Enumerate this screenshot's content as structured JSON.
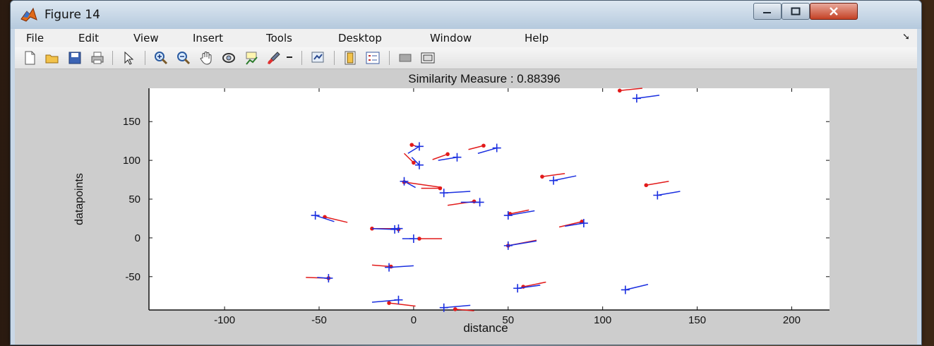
{
  "window": {
    "title": "Figure 14",
    "menu": [
      "File",
      "Edit",
      "View",
      "Insert",
      "Tools",
      "Desktop",
      "Window",
      "Help"
    ]
  },
  "toolbar": {
    "icons": [
      "new-figure-icon",
      "open-file-icon",
      "save-icon",
      "print-icon",
      "edit-plot-arrow-icon",
      "zoom-in-icon",
      "zoom-out-icon",
      "pan-hand-icon",
      "rotate-3d-icon",
      "data-cursor-icon",
      "brush-icon",
      "brush-dropdown-icon",
      "link-plot-icon",
      "insert-colorbar-icon",
      "insert-legend-icon",
      "hide-plot-tools-icon",
      "show-plot-tools-icon"
    ]
  },
  "chart_data": {
    "type": "scatter",
    "title": "Similarity Measure : 0.88396",
    "xlabel": "distance",
    "ylabel": "datapoints",
    "xlim": [
      -140,
      220
    ],
    "ylim": [
      -93,
      193
    ],
    "xticks": [
      -100,
      -50,
      0,
      50,
      100,
      150,
      200
    ],
    "yticks": [
      -50,
      0,
      50,
      100,
      150
    ],
    "colors": {
      "red": "#e21a1a",
      "blue": "#1a2fe0"
    },
    "series": [
      {
        "marker": "dot",
        "color": "red",
        "points": [
          {
            "x": 109,
            "y": 190,
            "dx": 12,
            "dy": 3
          },
          {
            "x": -1,
            "y": 120,
            "dx": 4,
            "dy": -3
          },
          {
            "x": 18,
            "y": 108,
            "dx": -8,
            "dy": -7
          },
          {
            "x": 37,
            "y": 119,
            "dx": -8,
            "dy": -5
          },
          {
            "x": 0,
            "y": 97,
            "dx": -5,
            "dy": 12
          },
          {
            "x": 68,
            "y": 79,
            "dx": 12,
            "dy": 4
          },
          {
            "x": 123,
            "y": 68,
            "dx": 12,
            "dy": 5
          },
          {
            "x": -5,
            "y": 72,
            "dx": 20,
            "dy": -7
          },
          {
            "x": 14,
            "y": 64,
            "dx": -10,
            "dy": 0
          },
          {
            "x": 32,
            "y": 47,
            "dx": -14,
            "dy": -5
          },
          {
            "x": 51,
            "y": 31,
            "dx": 10,
            "dy": 5
          },
          {
            "x": 89,
            "y": 21,
            "dx": -12,
            "dy": -7
          },
          {
            "x": -47,
            "y": 27,
            "dx": 12,
            "dy": -7
          },
          {
            "x": -22,
            "y": 12,
            "dx": 12,
            "dy": 0
          },
          {
            "x": -8,
            "y": 11,
            "dx": -8,
            "dy": 1
          },
          {
            "x": 3,
            "y": -1,
            "dx": 12,
            "dy": 0
          },
          {
            "x": 50,
            "y": -10,
            "dx": 15,
            "dy": 7
          },
          {
            "x": -12,
            "y": -37,
            "dx": -10,
            "dy": 2
          },
          {
            "x": -45,
            "y": -52,
            "dx": -12,
            "dy": 1
          },
          {
            "x": 58,
            "y": -63,
            "dx": 12,
            "dy": 6
          },
          {
            "x": -13,
            "y": -84,
            "dx": 14,
            "dy": -4
          },
          {
            "x": 22,
            "y": -92,
            "dx": 10,
            "dy": -2
          }
        ]
      },
      {
        "marker": "plus",
        "color": "blue",
        "points": [
          {
            "x": 118,
            "y": 180,
            "dx": 12,
            "dy": 4
          },
          {
            "x": 3,
            "y": 118,
            "dx": -6,
            "dy": -9
          },
          {
            "x": 23,
            "y": 104,
            "dx": -10,
            "dy": -4
          },
          {
            "x": 44,
            "y": 116,
            "dx": -10,
            "dy": -7
          },
          {
            "x": 3,
            "y": 94,
            "dx": -4,
            "dy": 10
          },
          {
            "x": 74,
            "y": 74,
            "dx": 12,
            "dy": 6
          },
          {
            "x": 129,
            "y": 55,
            "dx": 12,
            "dy": 5
          },
          {
            "x": -5,
            "y": 73,
            "dx": 6,
            "dy": -8
          },
          {
            "x": 16,
            "y": 58,
            "dx": 14,
            "dy": 2
          },
          {
            "x": 35,
            "y": 46,
            "dx": -10,
            "dy": 0
          },
          {
            "x": 50,
            "y": 29,
            "dx": 14,
            "dy": 6
          },
          {
            "x": 90,
            "y": 19,
            "dx": -10,
            "dy": -4
          },
          {
            "x": -52,
            "y": 29,
            "dx": 10,
            "dy": -8
          },
          {
            "x": -10,
            "y": 11,
            "dx": -12,
            "dy": 1
          },
          {
            "x": -8,
            "y": 12,
            "dx": -4,
            "dy": 0
          },
          {
            "x": 0,
            "y": -1,
            "dx": -6,
            "dy": 0
          },
          {
            "x": 50,
            "y": -10,
            "dx": 15,
            "dy": 6
          },
          {
            "x": -13,
            "y": -38,
            "dx": 13,
            "dy": 2
          },
          {
            "x": -45,
            "y": -52,
            "dx": -6,
            "dy": 1
          },
          {
            "x": 55,
            "y": -65,
            "dx": 12,
            "dy": 4
          },
          {
            "x": -8,
            "y": -80,
            "dx": -14,
            "dy": -3
          },
          {
            "x": 112,
            "y": -67,
            "dx": 12,
            "dy": 7
          },
          {
            "x": 16,
            "y": -90,
            "dx": 14,
            "dy": 3
          }
        ]
      }
    ]
  }
}
